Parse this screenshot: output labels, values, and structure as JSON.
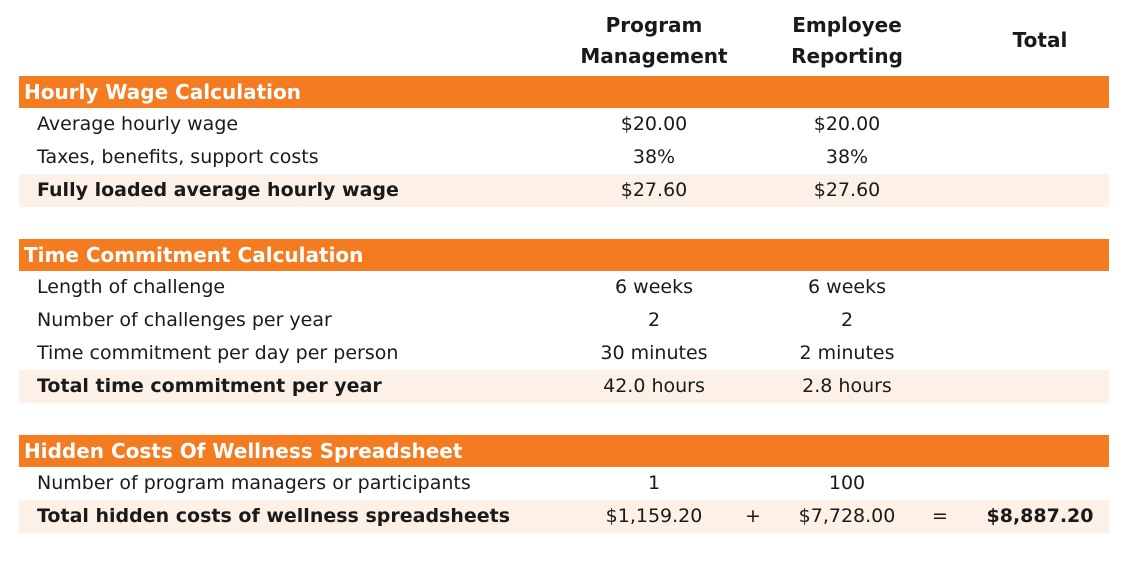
{
  "header": {
    "columns": [
      "Program Management",
      "Employee Reporting",
      "Total"
    ]
  },
  "sections": [
    {
      "title": "Hourly Wage Calculation",
      "rows": [
        {
          "label": "Average hourly wage",
          "values": [
            "$20.00",
            "$20.00"
          ]
        },
        {
          "label": "Taxes, benefits, support costs",
          "values": [
            "38%",
            "38%"
          ]
        },
        {
          "label": "Fully loaded average hourly wage",
          "values": [
            "$27.60",
            "$27.60"
          ],
          "bold": true
        }
      ]
    },
    {
      "title": "Time Commitment Calculation",
      "rows": [
        {
          "label": "Length of challenge",
          "values": [
            "6 weeks",
            "6 weeks"
          ]
        },
        {
          "label": "Number of challenges per year",
          "values": [
            "2",
            "2"
          ]
        },
        {
          "label": "Time commitment per day per person",
          "values": [
            "30 minutes",
            "2 minutes"
          ]
        },
        {
          "label": "Total time commitment per year",
          "values": [
            "42.0 hours",
            "2.8 hours"
          ],
          "bold": true
        }
      ]
    },
    {
      "title": "Hidden Costs Of Wellness Spreadsheet",
      "rows": [
        {
          "label": "Number of program managers or participants",
          "values": [
            "1",
            "100"
          ]
        },
        {
          "label": "Total hidden costs of wellness spreadsheets",
          "values": [
            "$1,159.20",
            "$7,728.00",
            "$8,887.20"
          ],
          "operators": [
            "+",
            "="
          ],
          "bold": true
        }
      ]
    }
  ]
}
